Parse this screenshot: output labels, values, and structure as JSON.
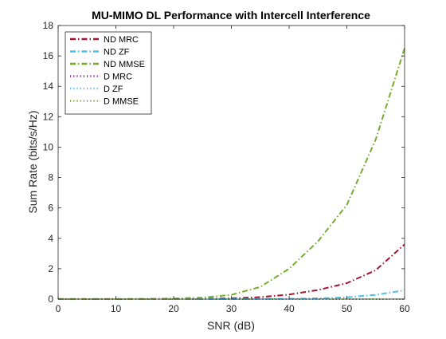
{
  "chart_data": {
    "type": "line",
    "title": "MU-MIMO DL Performance with Intercell Interference",
    "xlabel": "SNR (dB)",
    "ylabel": "Sum Rate (bits/s/Hz)",
    "xlim": [
      0,
      60
    ],
    "ylim": [
      0,
      18
    ],
    "xticks": [
      0,
      10,
      20,
      30,
      40,
      50,
      60
    ],
    "yticks": [
      0,
      2,
      4,
      6,
      8,
      10,
      12,
      14,
      16,
      18
    ],
    "grid": false,
    "legend_position": "top-left",
    "x": [
      0,
      5,
      10,
      15,
      20,
      25,
      30,
      35,
      40,
      45,
      50,
      55,
      60
    ],
    "series": [
      {
        "name": "ND MRC",
        "color": "#A2142F",
        "dash": "dash-dot",
        "values": [
          0,
          0,
          0,
          0,
          0.01,
          0.02,
          0.05,
          0.13,
          0.3,
          0.6,
          1.05,
          1.9,
          3.6
        ]
      },
      {
        "name": "ND ZF",
        "color": "#4DBEEE",
        "dash": "dash-dot",
        "values": [
          0,
          0,
          0,
          0,
          0,
          0,
          0,
          0.01,
          0.02,
          0.05,
          0.12,
          0.28,
          0.58
        ]
      },
      {
        "name": "ND MMSE",
        "color": "#77AC30",
        "dash": "dash-dot",
        "values": [
          0.01,
          0.01,
          0.01,
          0.02,
          0.04,
          0.1,
          0.28,
          0.8,
          2.0,
          3.8,
          6.2,
          10.5,
          16.5
        ]
      },
      {
        "name": "D MRC",
        "color": "#7E2F8E",
        "dash": "dotted",
        "values": [
          0,
          0,
          0,
          0,
          0,
          0,
          0,
          0,
          0,
          0,
          0,
          0,
          0
        ]
      },
      {
        "name": "D ZF",
        "color": "#4DBEEE",
        "dash": "dotted",
        "values": [
          0,
          0,
          0,
          0,
          0,
          0,
          0,
          0,
          0,
          0,
          0,
          0,
          0
        ]
      },
      {
        "name": "D MMSE",
        "color": "#77AC30",
        "dash": "dotted",
        "values": [
          0,
          0,
          0,
          0,
          0,
          0,
          0,
          0,
          0,
          0,
          0,
          0,
          0
        ]
      }
    ]
  }
}
